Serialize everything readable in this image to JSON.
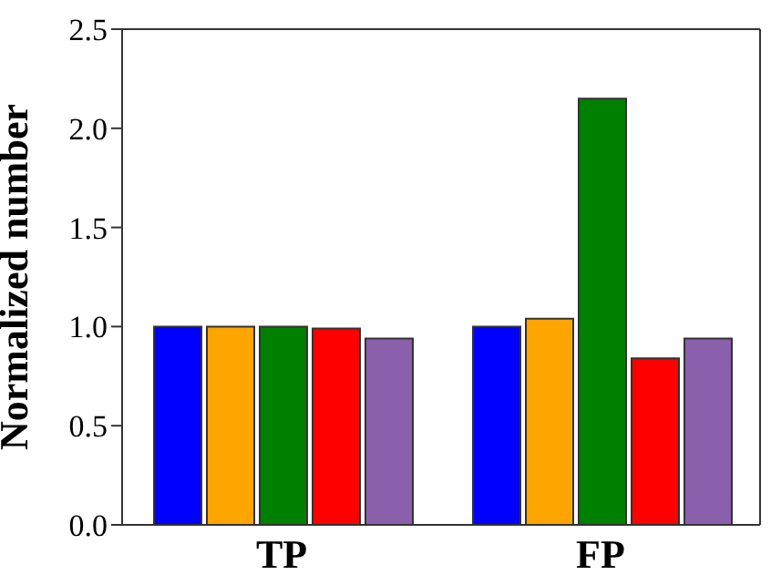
{
  "chart_data": {
    "type": "bar",
    "ylabel": "Normalized number",
    "categories": [
      "TP",
      "FP"
    ],
    "series": [
      {
        "color": "#0000ff",
        "values": [
          1.0,
          1.0
        ]
      },
      {
        "color": "#ffa500",
        "values": [
          1.0,
          1.04
        ]
      },
      {
        "color": "#008000",
        "values": [
          1.0,
          2.15
        ]
      },
      {
        "color": "#ff0000",
        "values": [
          0.99,
          0.84
        ]
      },
      {
        "color": "#8a5fac",
        "values": [
          0.94,
          0.94
        ]
      }
    ],
    "ylim": [
      0,
      2.5
    ],
    "yticks": [
      {
        "value": 0,
        "label": "0.0"
      },
      0.5,
      {
        "value": 1,
        "label": "1.0"
      },
      1.5,
      {
        "value": 2,
        "label": "2.0"
      },
      2.5
    ],
    "grid": false,
    "legend": false
  }
}
